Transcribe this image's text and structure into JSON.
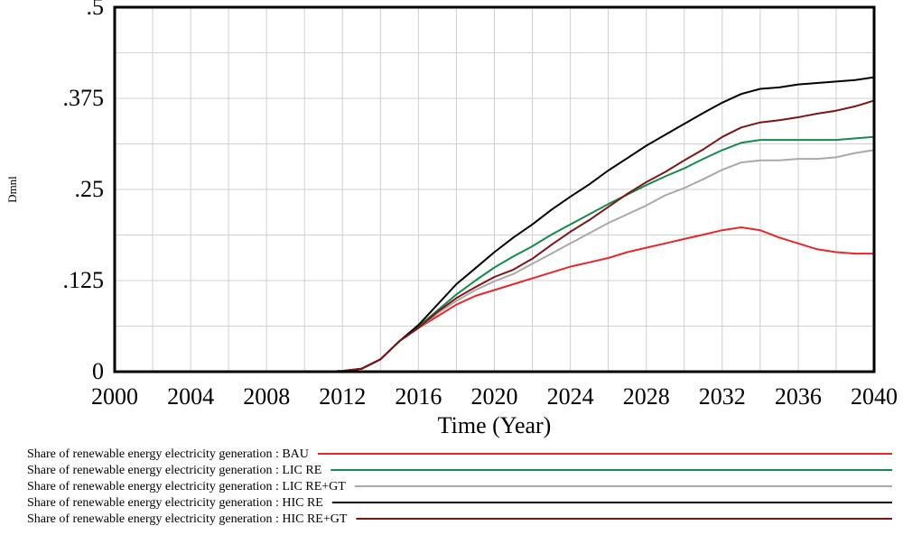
{
  "chart_data": {
    "type": "line",
    "title": "",
    "xlabel": "Time (Year)",
    "ylabel": "Dmnl",
    "xlim": [
      2000,
      2040
    ],
    "ylim": [
      0,
      0.5
    ],
    "grid": true,
    "legend_placement": "bottom",
    "x_ticks": [
      {
        "value": 2000,
        "label": "2000"
      },
      {
        "value": 2004,
        "label": "2004"
      },
      {
        "value": 2008,
        "label": "2008"
      },
      {
        "value": 2012,
        "label": "2012"
      },
      {
        "value": 2016,
        "label": "2016"
      },
      {
        "value": 2020,
        "label": "2020"
      },
      {
        "value": 2024,
        "label": "2024"
      },
      {
        "value": 2028,
        "label": "2028"
      },
      {
        "value": 2032,
        "label": "2032"
      },
      {
        "value": 2036,
        "label": "2036"
      },
      {
        "value": 2040,
        "label": "2040"
      }
    ],
    "y_ticks": [
      {
        "value": 0,
        "label": "0"
      },
      {
        "value": 0.125,
        "label": ".125"
      },
      {
        "value": 0.25,
        "label": ".25"
      },
      {
        "value": 0.375,
        "label": ".375"
      },
      {
        "value": 0.5,
        "label": ".5"
      }
    ],
    "x": [
      2001,
      2002,
      2003,
      2004,
      2005,
      2006,
      2007,
      2008,
      2009,
      2010,
      2011,
      2012,
      2013,
      2014,
      2015,
      2016,
      2017,
      2018,
      2019,
      2020,
      2021,
      2022,
      2023,
      2024,
      2025,
      2026,
      2027,
      2028,
      2029,
      2030,
      2031,
      2032,
      2033,
      2034,
      2035,
      2036,
      2037,
      2038,
      2039,
      2040
    ],
    "series": [
      {
        "name": "Share of renewable energy electricity generation : BAU",
        "color": "#e8272a",
        "values": [
          0,
          0,
          0,
          0,
          0,
          0,
          0,
          0,
          0,
          0,
          0,
          0.001,
          0.004,
          0.017,
          0.042,
          0.06,
          0.076,
          0.092,
          0.104,
          0.112,
          0.12,
          0.128,
          0.136,
          0.144,
          0.15,
          0.156,
          0.164,
          0.17,
          0.176,
          0.182,
          0.188,
          0.194,
          0.198,
          0.194,
          0.184,
          0.176,
          0.168,
          0.164,
          0.162,
          0.162
        ]
      },
      {
        "name": "Share of renewable energy electricity generation : LIC RE",
        "color": "#148a4e",
        "values": [
          0,
          0,
          0,
          0,
          0,
          0,
          0,
          0,
          0,
          0,
          0,
          0.001,
          0.004,
          0.017,
          0.042,
          0.062,
          0.084,
          0.106,
          0.125,
          0.143,
          0.158,
          0.172,
          0.188,
          0.202,
          0.216,
          0.23,
          0.243,
          0.256,
          0.268,
          0.279,
          0.292,
          0.304,
          0.314,
          0.318,
          0.318,
          0.318,
          0.318,
          0.318,
          0.32,
          0.322
        ]
      },
      {
        "name": "Share of renewable energy electricity generation : LIC RE+GT",
        "color": "#a9a9a9",
        "values": [
          0,
          0,
          0,
          0,
          0,
          0,
          0,
          0,
          0,
          0,
          0,
          0.001,
          0.004,
          0.017,
          0.042,
          0.06,
          0.08,
          0.097,
          0.112,
          0.124,
          0.134,
          0.148,
          0.162,
          0.176,
          0.19,
          0.204,
          0.216,
          0.228,
          0.242,
          0.252,
          0.264,
          0.277,
          0.287,
          0.29,
          0.29,
          0.292,
          0.292,
          0.294,
          0.3,
          0.304
        ]
      },
      {
        "name": "Share of renewable energy electricity generation : HIC RE",
        "color": "#000000",
        "values": [
          0,
          0,
          0,
          0,
          0,
          0,
          0,
          0,
          0,
          0,
          0,
          0.001,
          0.004,
          0.017,
          0.042,
          0.064,
          0.092,
          0.12,
          0.142,
          0.164,
          0.184,
          0.202,
          0.222,
          0.24,
          0.257,
          0.276,
          0.293,
          0.31,
          0.325,
          0.34,
          0.355,
          0.369,
          0.381,
          0.388,
          0.39,
          0.394,
          0.396,
          0.398,
          0.4,
          0.404
        ]
      },
      {
        "name": "Share of renewable energy electricity generation : HIC RE+GT",
        "color": "#7b1616",
        "values": [
          0,
          0,
          0,
          0,
          0,
          0,
          0,
          0,
          0,
          0,
          0,
          0.001,
          0.004,
          0.017,
          0.042,
          0.06,
          0.082,
          0.101,
          0.116,
          0.13,
          0.14,
          0.155,
          0.174,
          0.192,
          0.208,
          0.226,
          0.244,
          0.26,
          0.274,
          0.29,
          0.305,
          0.322,
          0.335,
          0.342,
          0.345,
          0.349,
          0.354,
          0.358,
          0.364,
          0.372
        ]
      }
    ]
  }
}
